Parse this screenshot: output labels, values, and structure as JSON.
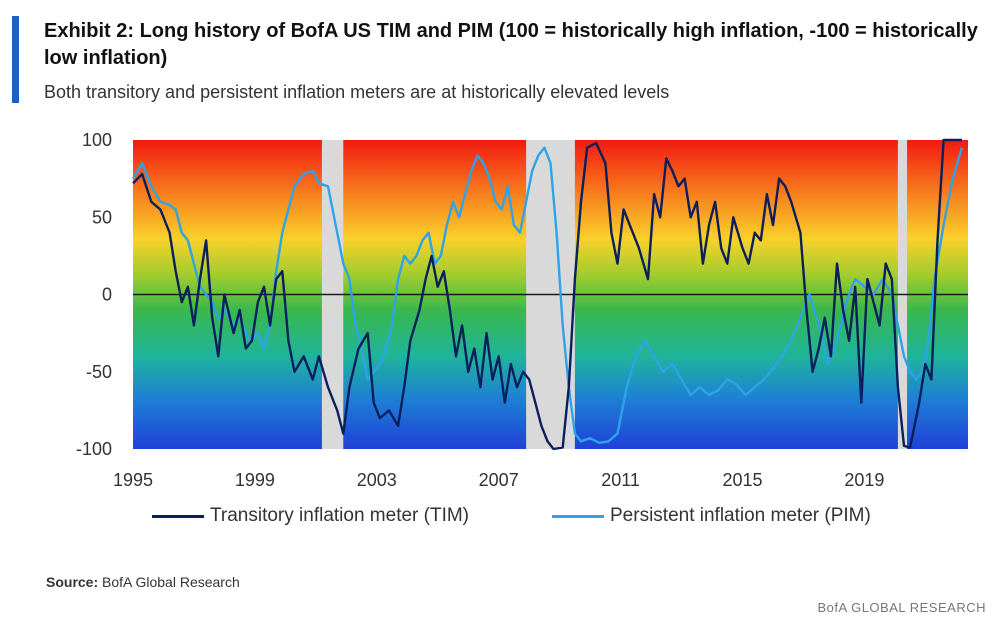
{
  "header": {
    "title": "Exhibit 2: Long history of BofA US TIM and PIM (100 = historically high inflation, -100 = historically low inflation)",
    "subtitle": "Both transitory and persistent inflation meters are at historically elevated levels"
  },
  "footer": {
    "source_label": "Source:",
    "source_text": "BofA Global Research",
    "brand": "BofA GLOBAL RESEARCH"
  },
  "colors": {
    "tim": "#0b1f5c",
    "pim": "#2ea3e8",
    "recession": "#d9d9d9",
    "zero_line": "#1a1a1a"
  },
  "chart_data": {
    "type": "line",
    "title": "Exhibit 2: Long history of BofA US TIM and PIM",
    "xlabel": "",
    "ylabel": "",
    "xlim": [
      1995,
      2022.4
    ],
    "ylim": [
      -100,
      100
    ],
    "x_ticks": [
      1995,
      1999,
      2003,
      2007,
      2011,
      2015,
      2019
    ],
    "y_ticks": [
      100,
      50,
      0,
      -50,
      -100
    ],
    "x_tick_labels": [
      "1995",
      "1999",
      "2003",
      "2007",
      "2011",
      "2015",
      "2019"
    ],
    "y_tick_labels": [
      "100",
      "50",
      "0",
      "-50",
      "-100"
    ],
    "background": "vertical gradient from red (100) through yellow and green to blue (-100)",
    "recession_bands": [
      [
        2001.2,
        2001.9
      ],
      [
        2007.9,
        2009.5
      ],
      [
        2020.1,
        2020.4
      ]
    ],
    "legend_position": "bottom",
    "series": [
      {
        "name": "Transitory inflation meter (TIM)",
        "key": "tim",
        "points": [
          [
            1995.0,
            72
          ],
          [
            1995.3,
            78
          ],
          [
            1995.6,
            60
          ],
          [
            1995.9,
            55
          ],
          [
            1996.2,
            40
          ],
          [
            1996.4,
            15
          ],
          [
            1996.6,
            -5
          ],
          [
            1996.8,
            5
          ],
          [
            1997.0,
            -20
          ],
          [
            1997.2,
            10
          ],
          [
            1997.4,
            35
          ],
          [
            1997.6,
            -15
          ],
          [
            1997.8,
            -40
          ],
          [
            1998.0,
            0
          ],
          [
            1998.3,
            -25
          ],
          [
            1998.5,
            -10
          ],
          [
            1998.7,
            -35
          ],
          [
            1998.9,
            -30
          ],
          [
            1999.1,
            -5
          ],
          [
            1999.3,
            5
          ],
          [
            1999.5,
            -20
          ],
          [
            1999.7,
            10
          ],
          [
            1999.9,
            15
          ],
          [
            2000.1,
            -30
          ],
          [
            2000.3,
            -50
          ],
          [
            2000.6,
            -40
          ],
          [
            2000.9,
            -55
          ],
          [
            2001.1,
            -40
          ],
          [
            2001.4,
            -60
          ],
          [
            2001.7,
            -75
          ],
          [
            2001.9,
            -90
          ],
          [
            2002.1,
            -60
          ],
          [
            2002.4,
            -35
          ],
          [
            2002.7,
            -25
          ],
          [
            2002.9,
            -70
          ],
          [
            2003.1,
            -80
          ],
          [
            2003.4,
            -75
          ],
          [
            2003.7,
            -85
          ],
          [
            2003.9,
            -60
          ],
          [
            2004.1,
            -30
          ],
          [
            2004.4,
            -10
          ],
          [
            2004.6,
            10
          ],
          [
            2004.8,
            25
          ],
          [
            2005.0,
            5
          ],
          [
            2005.2,
            15
          ],
          [
            2005.4,
            -10
          ],
          [
            2005.6,
            -40
          ],
          [
            2005.8,
            -20
          ],
          [
            2006.0,
            -50
          ],
          [
            2006.2,
            -35
          ],
          [
            2006.4,
            -60
          ],
          [
            2006.6,
            -25
          ],
          [
            2006.8,
            -55
          ],
          [
            2007.0,
            -40
          ],
          [
            2007.2,
            -70
          ],
          [
            2007.4,
            -45
          ],
          [
            2007.6,
            -60
          ],
          [
            2007.8,
            -50
          ],
          [
            2008.0,
            -55
          ],
          [
            2008.2,
            -70
          ],
          [
            2008.4,
            -85
          ],
          [
            2008.6,
            -95
          ],
          [
            2008.8,
            -100
          ],
          [
            2009.1,
            -99
          ],
          [
            2009.3,
            -60
          ],
          [
            2009.5,
            10
          ],
          [
            2009.7,
            60
          ],
          [
            2009.9,
            95
          ],
          [
            2010.2,
            98
          ],
          [
            2010.5,
            85
          ],
          [
            2010.7,
            40
          ],
          [
            2010.9,
            20
          ],
          [
            2011.1,
            55
          ],
          [
            2011.4,
            40
          ],
          [
            2011.6,
            30
          ],
          [
            2011.9,
            10
          ],
          [
            2012.1,
            65
          ],
          [
            2012.3,
            50
          ],
          [
            2012.5,
            88
          ],
          [
            2012.7,
            80
          ],
          [
            2012.9,
            70
          ],
          [
            2013.1,
            75
          ],
          [
            2013.3,
            50
          ],
          [
            2013.5,
            60
          ],
          [
            2013.7,
            20
          ],
          [
            2013.9,
            45
          ],
          [
            2014.1,
            60
          ],
          [
            2014.3,
            30
          ],
          [
            2014.5,
            20
          ],
          [
            2014.7,
            50
          ],
          [
            2015.0,
            30
          ],
          [
            2015.2,
            20
          ],
          [
            2015.4,
            40
          ],
          [
            2015.6,
            35
          ],
          [
            2015.8,
            65
          ],
          [
            2016.0,
            45
          ],
          [
            2016.2,
            75
          ],
          [
            2016.4,
            70
          ],
          [
            2016.6,
            60
          ],
          [
            2016.9,
            40
          ],
          [
            2017.1,
            -10
          ],
          [
            2017.3,
            -50
          ],
          [
            2017.5,
            -35
          ],
          [
            2017.7,
            -15
          ],
          [
            2017.9,
            -40
          ],
          [
            2018.1,
            20
          ],
          [
            2018.3,
            -10
          ],
          [
            2018.5,
            -30
          ],
          [
            2018.7,
            5
          ],
          [
            2018.9,
            -70
          ],
          [
            2019.1,
            10
          ],
          [
            2019.3,
            -5
          ],
          [
            2019.5,
            -20
          ],
          [
            2019.7,
            20
          ],
          [
            2019.9,
            10
          ],
          [
            2020.1,
            -60
          ],
          [
            2020.3,
            -98
          ],
          [
            2020.5,
            -99
          ],
          [
            2020.8,
            -70
          ],
          [
            2021.0,
            -45
          ],
          [
            2021.2,
            -55
          ],
          [
            2021.4,
            35
          ],
          [
            2021.6,
            100
          ],
          [
            2021.8,
            100
          ],
          [
            2022.2,
            100
          ]
        ]
      },
      {
        "name": "Persistent inflation meter (PIM)",
        "key": "pim",
        "points": [
          [
            1995.0,
            75
          ],
          [
            1995.3,
            85
          ],
          [
            1995.6,
            70
          ],
          [
            1995.9,
            60
          ],
          [
            1996.2,
            58
          ],
          [
            1996.4,
            55
          ],
          [
            1996.6,
            40
          ],
          [
            1996.8,
            35
          ],
          [
            1997.0,
            20
          ],
          [
            1997.2,
            5
          ],
          [
            1997.4,
            0
          ],
          [
            1997.6,
            -5
          ],
          [
            1997.8,
            -15
          ],
          [
            1998.0,
            -10
          ],
          [
            1998.3,
            -20
          ],
          [
            1998.5,
            -15
          ],
          [
            1998.7,
            -25
          ],
          [
            1998.9,
            -30
          ],
          [
            1999.1,
            -25
          ],
          [
            1999.3,
            -35
          ],
          [
            1999.5,
            -20
          ],
          [
            1999.7,
            15
          ],
          [
            1999.9,
            40
          ],
          [
            2000.1,
            55
          ],
          [
            2000.3,
            70
          ],
          [
            2000.6,
            78
          ],
          [
            2000.9,
            80
          ],
          [
            2001.1,
            72
          ],
          [
            2001.4,
            70
          ],
          [
            2001.7,
            40
          ],
          [
            2001.9,
            20
          ],
          [
            2002.1,
            10
          ],
          [
            2002.3,
            -20
          ],
          [
            2002.5,
            -35
          ],
          [
            2002.7,
            -55
          ],
          [
            2002.9,
            -50
          ],
          [
            2003.1,
            -45
          ],
          [
            2003.3,
            -35
          ],
          [
            2003.5,
            -20
          ],
          [
            2003.7,
            10
          ],
          [
            2003.9,
            25
          ],
          [
            2004.1,
            20
          ],
          [
            2004.3,
            25
          ],
          [
            2004.5,
            35
          ],
          [
            2004.7,
            40
          ],
          [
            2004.9,
            20
          ],
          [
            2005.1,
            25
          ],
          [
            2005.3,
            45
          ],
          [
            2005.5,
            60
          ],
          [
            2005.7,
            50
          ],
          [
            2005.9,
            65
          ],
          [
            2006.1,
            80
          ],
          [
            2006.3,
            90
          ],
          [
            2006.5,
            85
          ],
          [
            2006.7,
            75
          ],
          [
            2006.9,
            60
          ],
          [
            2007.1,
            55
          ],
          [
            2007.3,
            70
          ],
          [
            2007.5,
            45
          ],
          [
            2007.7,
            40
          ],
          [
            2007.9,
            60
          ],
          [
            2008.1,
            80
          ],
          [
            2008.3,
            90
          ],
          [
            2008.5,
            95
          ],
          [
            2008.7,
            85
          ],
          [
            2008.9,
            40
          ],
          [
            2009.1,
            -20
          ],
          [
            2009.3,
            -60
          ],
          [
            2009.5,
            -90
          ],
          [
            2009.7,
            -95
          ],
          [
            2010.0,
            -93
          ],
          [
            2010.3,
            -96
          ],
          [
            2010.6,
            -95
          ],
          [
            2010.9,
            -90
          ],
          [
            2011.2,
            -60
          ],
          [
            2011.5,
            -40
          ],
          [
            2011.8,
            -30
          ],
          [
            2012.1,
            -40
          ],
          [
            2012.4,
            -50
          ],
          [
            2012.7,
            -45
          ],
          [
            2013.0,
            -55
          ],
          [
            2013.3,
            -65
          ],
          [
            2013.6,
            -60
          ],
          [
            2013.9,
            -65
          ],
          [
            2014.2,
            -62
          ],
          [
            2014.5,
            -55
          ],
          [
            2014.8,
            -58
          ],
          [
            2015.1,
            -65
          ],
          [
            2015.4,
            -60
          ],
          [
            2015.7,
            -55
          ],
          [
            2016.0,
            -48
          ],
          [
            2016.3,
            -40
          ],
          [
            2016.6,
            -30
          ],
          [
            2016.9,
            -15
          ],
          [
            2017.2,
            0
          ],
          [
            2017.5,
            -20
          ],
          [
            2017.8,
            -45
          ],
          [
            2018.1,
            -30
          ],
          [
            2018.4,
            -5
          ],
          [
            2018.7,
            10
          ],
          [
            2019.0,
            5
          ],
          [
            2019.3,
            0
          ],
          [
            2019.6,
            10
          ],
          [
            2019.9,
            0
          ],
          [
            2020.1,
            -20
          ],
          [
            2020.3,
            -40
          ],
          [
            2020.5,
            -50
          ],
          [
            2020.7,
            -55
          ],
          [
            2020.9,
            -50
          ],
          [
            2021.1,
            -30
          ],
          [
            2021.3,
            10
          ],
          [
            2021.6,
            45
          ],
          [
            2021.9,
            75
          ],
          [
            2022.2,
            95
          ]
        ]
      }
    ]
  }
}
